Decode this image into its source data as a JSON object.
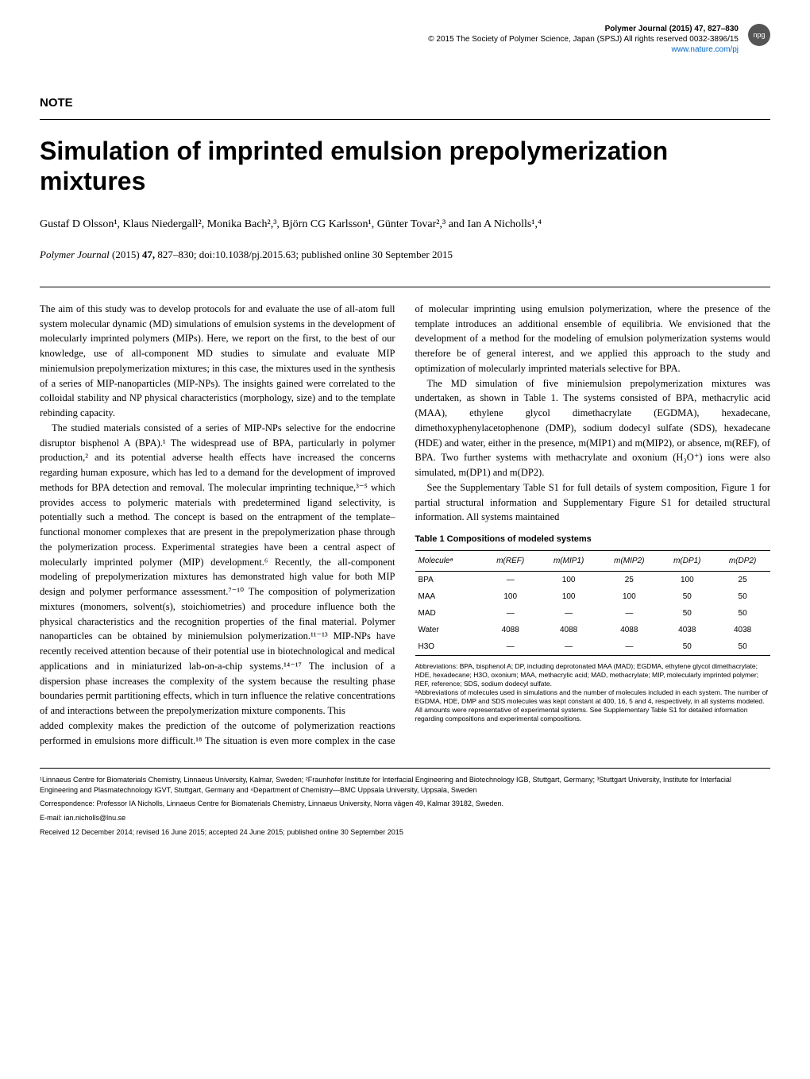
{
  "header": {
    "journal_line": "Polymer Journal (2015) 47, 827–830",
    "copyright_line": "© 2015 The Society of Polymer Science, Japan (SPSJ) All rights reserved 0032-3896/15",
    "url": "www.nature.com/pj",
    "npg_label": "npg"
  },
  "note_label": "NOTE",
  "title": "Simulation of imprinted emulsion prepolymerization mixtures",
  "authors": "Gustaf D Olsson¹, Klaus Niedergall², Monika Bach²,³, Björn CG Karlsson¹, Günter Tovar²,³ and Ian A Nicholls¹,⁴",
  "citation": {
    "journal": "Polymer Journal",
    "year": "(2015)",
    "volume": "47,",
    "pages": "827–830;",
    "doi": "doi:10.1038/pj.2015.63;",
    "pub_date": "published online 30 September 2015"
  },
  "body": {
    "p1": "The aim of this study was to develop protocols for and evaluate the use of all-atom full system molecular dynamic (MD) simulations of emulsion systems in the development of molecularly imprinted polymers (MIPs). Here, we report on the first, to the best of our knowledge, use of all-component MD studies to simulate and evaluate MIP miniemulsion prepolymerization mixtures; in this case, the mixtures used in the synthesis of a series of MIP-nanoparticles (MIP-NPs). The insights gained were correlated to the colloidal stability and NP physical characteristics (morphology, size) and to the template rebinding capacity.",
    "p2": "The studied materials consisted of a series of MIP-NPs selective for the endocrine disruptor bisphenol A (BPA).¹ The widespread use of BPA, particularly in polymer production,² and its potential adverse health effects have increased the concerns regarding human exposure, which has led to a demand for the development of improved methods for BPA detection and removal. The molecular imprinting technique,³⁻⁵ which provides access to polymeric materials with predetermined ligand selectivity, is potentially such a method. The concept is based on the entrapment of the template–functional monomer complexes that are present in the prepolymerization phase through the polymerization process. Experimental strategies have been a central aspect of molecularly imprinted polymer (MIP) development.⁶ Recently, the all-component modeling of prepolymerization mixtures has demonstrated high value for both MIP design and polymer performance assessment.⁷⁻¹⁰ The composition of polymerization mixtures (monomers, solvent(s), stoichiometries) and procedure influence both the physical characteristics and the recognition properties of the final material. Polymer nanoparticles can be obtained by miniemulsion polymerization.¹¹⁻¹³ MIP-NPs have recently received attention because of their potential use in biotechnological and medical applications and in miniaturized lab-on-a-chip systems.¹⁴⁻¹⁷ The inclusion of a dispersion phase increases the complexity of the system because the resulting phase boundaries permit partitioning effects, which in turn influence the relative concentrations of and interactions between the prepolymerization mixture components. This",
    "p3": "added complexity makes the prediction of the outcome of polymerization reactions performed in emulsions more difficult.¹⁸ The situation is even more complex in the case of molecular imprinting using emulsion polymerization, where the presence of the template introduces an additional ensemble of equilibria. We envisioned that the development of a method for the modeling of emulsion polymerization systems would therefore be of general interest, and we applied this approach to the study and optimization of molecularly imprinted materials selective for BPA.",
    "p4": "The MD simulation of five miniemulsion prepolymerization mixtures was undertaken, as shown in Table 1. The systems consisted of BPA, methacrylic acid (MAA), ethylene glycol dimethacrylate (EGDMA), hexadecane, dimethoxyphenylacetophenone (DMP), sodium dodecyl sulfate (SDS), hexadecane (HDE) and water, either in the presence, m(MIP1) and m(MIP2), or absence, m(REF), of BPA. Two further systems with methacrylate and oxonium (H₃O⁺) ions were also simulated, m(DP1) and m(DP2).",
    "p5": "See the Supplementary Table S1 for full details of system composition, Figure 1 for partial structural information and Supplementary Figure S1 for detailed structural information. All systems maintained"
  },
  "table": {
    "caption": "Table 1 Compositions of modeled systems",
    "headers": [
      "Moleculeᵃ",
      "m(REF)",
      "m(MIP1)",
      "m(MIP2)",
      "m(DP1)",
      "m(DP2)"
    ],
    "rows": [
      [
        "BPA",
        "—",
        "100",
        "25",
        "100",
        "25"
      ],
      [
        "MAA",
        "100",
        "100",
        "100",
        "50",
        "50"
      ],
      [
        "MAD",
        "—",
        "—",
        "—",
        "50",
        "50"
      ],
      [
        "Water",
        "4088",
        "4088",
        "4088",
        "4038",
        "4038"
      ],
      [
        "H3O",
        "—",
        "—",
        "—",
        "50",
        "50"
      ]
    ],
    "footnote1": "Abbreviations: BPA, bisphenol A; DP, including deprotonated MAA (MAD); EGDMA, ethylene glycol dimethacrylate; HDE, hexadecane; H3O, oxonium; MAA, methacrylic acid; MAD, methacrylate; MIP, molecularly imprinted polymer; REF, reference; SDS, sodium dodecyl sulfate.",
    "footnote2": "ᵃAbbreviations of molecules used in simulations and the number of molecules included in each system. The number of EGDMA, HDE, DMP and SDS molecules was kept constant at 400, 16, 5 and 4, respectively, in all systems modeled. All amounts were representative of experimental systems. See Supplementary Table S1 for detailed information regarding compositions and experimental compositions."
  },
  "footer": {
    "affiliations": "¹Linnaeus Centre for Biomaterials Chemistry, Linnaeus University, Kalmar, Sweden; ²Fraunhofer Institute for Interfacial Engineering and Biotechnology IGB, Stuttgart, Germany; ³Stuttgart University, Institute for Interfacial Engineering and Plasmatechnology IGVT, Stuttgart, Germany and ⁴Department of Chemistry—BMC Uppsala University, Uppsala, Sweden",
    "correspondence": "Correspondence: Professor IA Nicholls, Linnaeus Centre for Biomaterials Chemistry, Linnaeus University, Norra vägen 49, Kalmar 39182, Sweden.",
    "email": "E-mail: ian.nicholls@lnu.se",
    "received": "Received 12 December 2014; revised 16 June 2015; accepted 24 June 2015; published online 30 September 2015"
  }
}
